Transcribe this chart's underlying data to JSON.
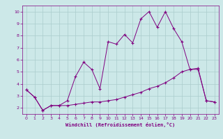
{
  "x": [
    0,
    1,
    2,
    3,
    4,
    5,
    6,
    7,
    8,
    9,
    10,
    11,
    12,
    13,
    14,
    15,
    16,
    17,
    18,
    19,
    20,
    21,
    22,
    23
  ],
  "line1_y": [
    3.5,
    2.9,
    1.8,
    2.2,
    2.2,
    2.6,
    4.6,
    5.8,
    5.2,
    3.6,
    7.5,
    7.3,
    8.1,
    7.4,
    9.4,
    10.0,
    8.7,
    10.0,
    8.6,
    7.5,
    5.2,
    5.3,
    2.6,
    2.5
  ],
  "line2_y": [
    3.5,
    2.9,
    1.8,
    2.2,
    2.2,
    2.2,
    2.3,
    2.4,
    2.5,
    2.5,
    2.6,
    2.7,
    2.9,
    3.1,
    3.3,
    3.6,
    3.8,
    4.1,
    4.5,
    5.0,
    5.2,
    5.2,
    2.6,
    2.5
  ],
  "line_color": "#800080",
  "bg_color": "#cce8e8",
  "grid_color": "#aacccc",
  "xlabel": "Windchill (Refroidissement éolien,°C)",
  "xlim": [
    -0.5,
    23.5
  ],
  "ylim": [
    1.5,
    10.5
  ],
  "yticks": [
    2,
    3,
    4,
    5,
    6,
    7,
    8,
    9,
    10
  ],
  "xticks": [
    0,
    1,
    2,
    3,
    4,
    5,
    6,
    7,
    8,
    9,
    10,
    11,
    12,
    13,
    14,
    15,
    16,
    17,
    18,
    19,
    20,
    21,
    22,
    23
  ]
}
